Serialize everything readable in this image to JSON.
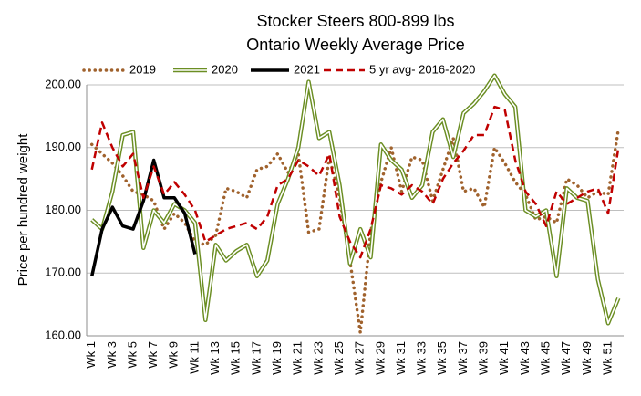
{
  "chart_data": {
    "type": "line",
    "title": "Stocker Steers 800-899 lbs",
    "subtitle": "Ontario Weekly Average Price",
    "y_label": "Price per hundred weight",
    "categories": [
      "Wk 1",
      null,
      "Wk 3",
      null,
      "Wk 5",
      null,
      "Wk 7",
      null,
      "Wk 9",
      null,
      "Wk 11",
      null,
      "Wk 13",
      null,
      "Wk 15",
      null,
      "Wk 17",
      null,
      "Wk 19",
      null,
      "Wk 21",
      null,
      "Wk 23",
      null,
      "Wk 25",
      null,
      "Wk 27",
      null,
      "Wk 29",
      null,
      "Wk 31",
      null,
      "Wk 33",
      null,
      "Wk 35",
      null,
      "Wk 37",
      null,
      "Wk 39",
      null,
      "Wk 41",
      null,
      "Wk 43",
      null,
      "Wk 45",
      null,
      "Wk 47",
      null,
      "Wk 49",
      null,
      "Wk 51",
      null
    ],
    "ylim": [
      160,
      200
    ],
    "yticks": [
      {
        "value": 160,
        "label": "160.00"
      },
      {
        "value": 170,
        "label": "170.00"
      },
      {
        "value": 180,
        "label": "180.00"
      },
      {
        "value": 190,
        "label": "190.00"
      },
      {
        "value": 200,
        "label": "200.00"
      }
    ],
    "grid": true,
    "legend": "top",
    "series": [
      {
        "name": "2019",
        "color": "#a0622d",
        "style": "dotted",
        "values": [
          190.5,
          189,
          187.5,
          185.5,
          183,
          182.5,
          181.5,
          177,
          179.5,
          178,
          175,
          174.5,
          176,
          183.5,
          183,
          182,
          186.5,
          187,
          189,
          186,
          189,
          176.5,
          177,
          188.5,
          182,
          172,
          160.5,
          176.5,
          184.5,
          190,
          183,
          188.5,
          188,
          181.5,
          186.5,
          191.5,
          183,
          183.5,
          180.5,
          190,
          187.5,
          184.5,
          182.5,
          178.5,
          179,
          178,
          185,
          184,
          182,
          183,
          182.5,
          193
        ]
      },
      {
        "name": "2020",
        "color": "#6b8e23",
        "style": "double",
        "values": [
          178.5,
          177,
          183,
          192,
          192.5,
          174,
          180,
          178,
          181,
          180,
          178,
          162.5,
          174.5,
          172,
          173.5,
          174.5,
          169.5,
          172,
          181,
          185,
          190,
          200.5,
          191.5,
          192.5,
          184,
          171.5,
          177,
          172.5,
          190.5,
          188,
          186.5,
          182,
          184,
          192.5,
          194.5,
          188.5,
          195.5,
          197,
          199,
          201.5,
          198.5,
          196.5,
          180,
          179,
          180,
          169.5,
          183.5,
          182,
          181.5,
          169,
          162,
          166
        ]
      },
      {
        "name": "2021",
        "color": "#000000",
        "style": "solid",
        "values": [
          169.5,
          177,
          180.5,
          177.5,
          177,
          181.5,
          188,
          182,
          182,
          179.5,
          173,
          null,
          null,
          null,
          null,
          null,
          null,
          null,
          null,
          null,
          null,
          null,
          null,
          null,
          null,
          null,
          null,
          null,
          null,
          null,
          null,
          null,
          null,
          null,
          null,
          null,
          null,
          null,
          null,
          null,
          null,
          null,
          null,
          null,
          null,
          null,
          null,
          null,
          null,
          null,
          null,
          null
        ]
      },
      {
        "name": "5 yr avg- 2016-2020",
        "color": "#c00000",
        "style": "dashed",
        "values": [
          186.5,
          194,
          190,
          187,
          189,
          182,
          187,
          182.5,
          184.5,
          182.5,
          180,
          175,
          176,
          177,
          177.5,
          178,
          177,
          179,
          184,
          185,
          188,
          187,
          185.5,
          189,
          179,
          175,
          172.5,
          177,
          184,
          183.5,
          182.5,
          184,
          183,
          181,
          185,
          187.5,
          189.5,
          192,
          192,
          196.5,
          196,
          188,
          183,
          181,
          177.5,
          183,
          181,
          182,
          183,
          183.5,
          179.5,
          190
        ]
      }
    ]
  }
}
